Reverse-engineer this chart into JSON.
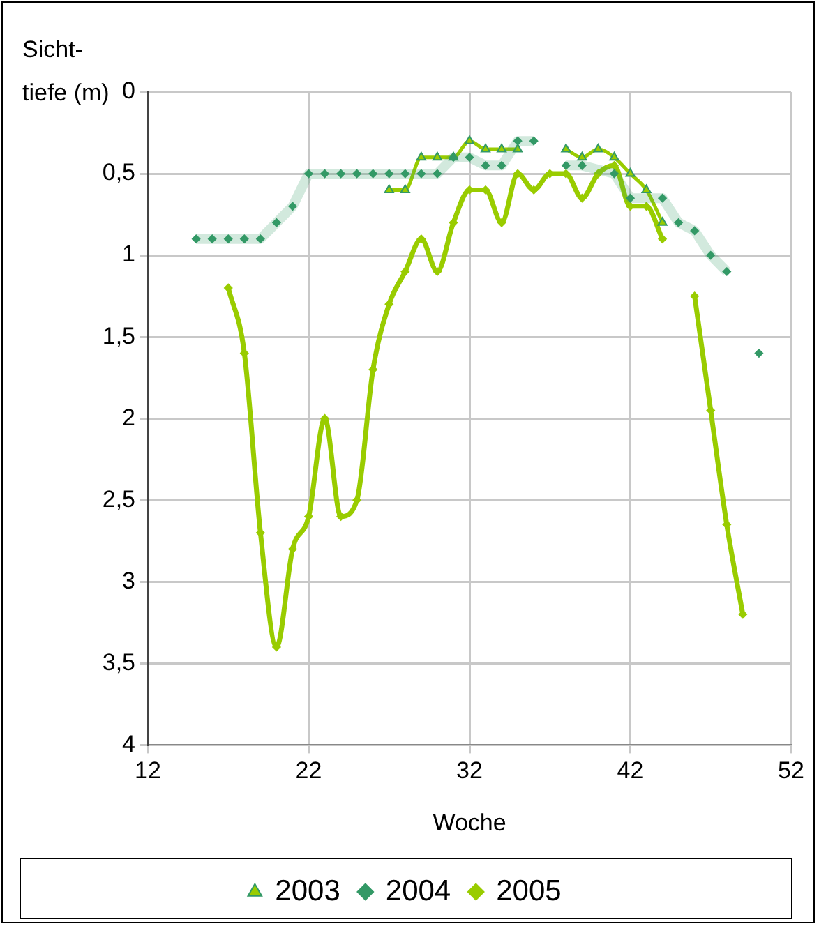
{
  "chart_data": {
    "type": "line",
    "ylabel": "Sicht-\ntiefe (m)",
    "xlabel": "Woche",
    "xlim": [
      12,
      52
    ],
    "xticks": [
      12,
      22,
      32,
      42,
      52
    ],
    "ylim": [
      4,
      0
    ],
    "yticks": [
      0,
      {
        "value": 0.5,
        "label": "0,5"
      },
      1,
      {
        "value": 1.5,
        "label": "1,5"
      },
      2,
      {
        "value": 2.5,
        "label": "2,5"
      },
      3,
      {
        "value": 3.5,
        "label": "3,5"
      },
      4
    ],
    "grid": true,
    "legend": "bottom",
    "series": [
      {
        "name": "2003",
        "color": "#99cc00",
        "marker": "triangle",
        "x": [
          27,
          28,
          29,
          30,
          31,
          32,
          33,
          34,
          35,
          36,
          37,
          38,
          39,
          40,
          41,
          42,
          43,
          44
        ],
        "values": [
          0.6,
          0.6,
          0.4,
          0.4,
          0.4,
          0.3,
          0.35,
          0.35,
          0.35,
          null,
          null,
          0.35,
          0.4,
          0.35,
          0.4,
          0.5,
          0.6,
          0.8
        ]
      },
      {
        "name": "2004",
        "color": "#339966",
        "marker": "diamond",
        "x": [
          15,
          16,
          17,
          18,
          19,
          20,
          21,
          22,
          23,
          24,
          25,
          26,
          27,
          28,
          29,
          30,
          31,
          32,
          33,
          34,
          35,
          36,
          37,
          38,
          39,
          41,
          42,
          44,
          45,
          46,
          47,
          48,
          49,
          50
        ],
        "values": [
          0.9,
          0.9,
          0.9,
          0.9,
          0.9,
          0.8,
          0.7,
          0.5,
          0.5,
          0.5,
          0.5,
          0.5,
          0.5,
          0.5,
          0.5,
          0.5,
          0.4,
          0.4,
          0.45,
          0.45,
          0.3,
          0.3,
          null,
          0.45,
          0.45,
          0.5,
          0.65,
          0.65,
          0.8,
          0.85,
          1.0,
          1.1,
          null,
          1.6
        ]
      },
      {
        "name": "2005",
        "color": "#99cc00",
        "marker": "diamond",
        "x": [
          17,
          18,
          19,
          20,
          21,
          22,
          23,
          24,
          25,
          26,
          27,
          28,
          29,
          30,
          31,
          32,
          33,
          34,
          35,
          36,
          37,
          38,
          39,
          40,
          41,
          42,
          43,
          44,
          45,
          46,
          47,
          48,
          49
        ],
        "values": [
          1.2,
          1.6,
          2.7,
          3.4,
          2.8,
          2.6,
          2.0,
          2.6,
          2.5,
          1.7,
          1.3,
          1.1,
          0.9,
          1.1,
          0.8,
          0.6,
          0.6,
          0.8,
          0.5,
          0.6,
          0.5,
          0.5,
          0.65,
          0.5,
          0.45,
          0.7,
          0.7,
          0.9,
          null,
          1.25,
          1.95,
          2.65,
          3.2
        ]
      }
    ]
  }
}
